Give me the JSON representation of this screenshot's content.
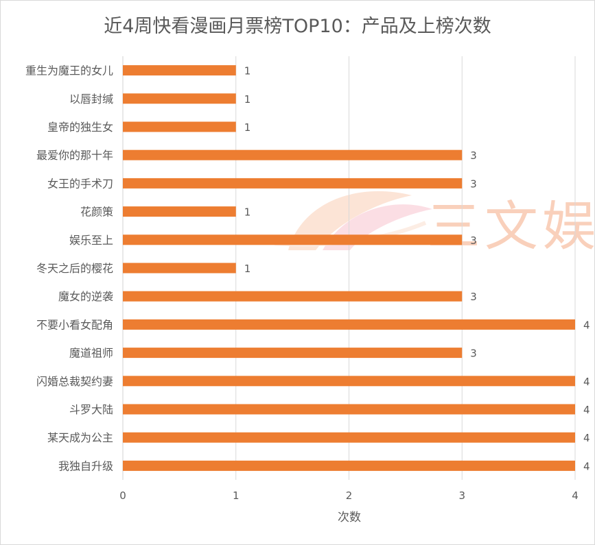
{
  "chart_data": {
    "type": "bar",
    "orientation": "horizontal",
    "title": "近4周快看漫画月票榜TOP10：产品及上榜次数",
    "xlabel": "次数",
    "ylabel": "",
    "xlim": [
      0,
      4
    ],
    "xticks": [
      "0",
      "1",
      "2",
      "3",
      "4"
    ],
    "grid": "vertical",
    "legend": "none",
    "bar_color": "#ed7d31",
    "categories": [
      "重生为魔王的女儿",
      "以唇封缄",
      "皇帝的独生女",
      "最爱你的那十年",
      "女王的手术刀",
      "花颜策",
      "娱乐至上",
      "冬天之后的樱花",
      "魔女的逆袭",
      "不要小看女配角",
      "魔道祖师",
      "闪婚总裁契约妻",
      "斗罗大陆",
      "某天成为公主",
      "我独自升级"
    ],
    "values": [
      1,
      1,
      1,
      3,
      3,
      1,
      3,
      1,
      3,
      4,
      3,
      4,
      4,
      4,
      4
    ],
    "data_labels": [
      "1",
      "1",
      "1",
      "3",
      "3",
      "1",
      "3",
      "1",
      "3",
      "4",
      "3",
      "4",
      "4",
      "4",
      "4"
    ]
  },
  "watermark": {
    "text": "三文娱",
    "color": "#f4a27a"
  }
}
